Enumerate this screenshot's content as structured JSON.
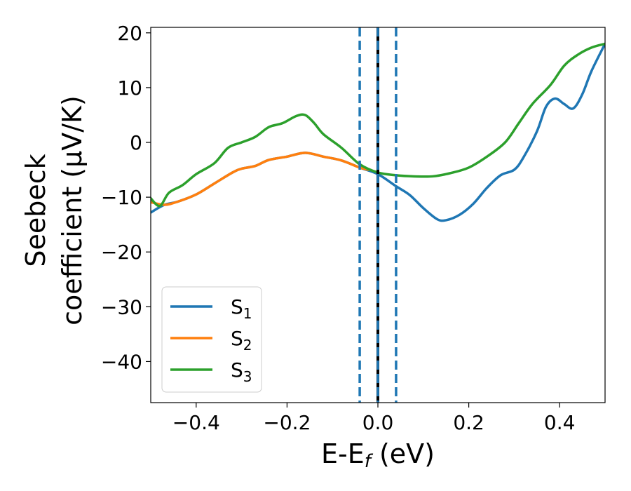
{
  "chart_data": {
    "type": "line",
    "xlabel": "E-E",
    "xlabel_sub": "f",
    "xlabel_unit": " (eV)",
    "ylabel_line1": "Seebeck",
    "ylabel_line2": "coefficient  (μV/K)",
    "xlim": [
      -0.5,
      0.5
    ],
    "ylim": [
      -47.5,
      21
    ],
    "xticks": [
      -0.4,
      -0.2,
      0.0,
      0.2,
      0.4
    ],
    "xtick_labels": [
      "−0.4",
      "−0.2",
      "0.0",
      "0.2",
      "0.4"
    ],
    "yticks": [
      20,
      10,
      0,
      -10,
      -20,
      -30,
      -40
    ],
    "ytick_labels": [
      "20",
      "10",
      "0",
      "−10",
      "−20",
      "−30",
      "−40"
    ],
    "vlines": [
      {
        "x": 0.0,
        "style": "solid",
        "color": "#000000"
      },
      {
        "x": -0.04,
        "style": "dashed",
        "color": "#1f77b4"
      },
      {
        "x": 0.0,
        "style": "dashed",
        "color": "#1f77b4"
      },
      {
        "x": 0.04,
        "style": "dashed",
        "color": "#1f77b4"
      }
    ],
    "legend_position": "lower-left",
    "series": [
      {
        "name": "S",
        "sub": "1",
        "color": "#1f77b4",
        "points": [
          [
            -0.5,
            -12.8
          ],
          [
            -0.47,
            -11.4
          ],
          [
            -0.44,
            -10.8
          ],
          [
            -0.4,
            -9.5
          ],
          [
            -0.36,
            -7.5
          ],
          [
            -0.32,
            -5.5
          ],
          [
            -0.3,
            -4.8
          ],
          [
            -0.27,
            -4.3
          ],
          [
            -0.24,
            -3.2
          ],
          [
            -0.2,
            -2.6
          ],
          [
            -0.16,
            -1.9
          ],
          [
            -0.12,
            -2.6
          ],
          [
            -0.08,
            -3.3
          ],
          [
            -0.04,
            -4.6
          ],
          [
            0.0,
            -5.8
          ],
          [
            0.04,
            -8.0
          ],
          [
            0.07,
            -9.6
          ],
          [
            0.1,
            -12.0
          ],
          [
            0.13,
            -14.0
          ],
          [
            0.15,
            -14.2
          ],
          [
            0.18,
            -13.2
          ],
          [
            0.21,
            -11.2
          ],
          [
            0.24,
            -8.3
          ],
          [
            0.27,
            -6.0
          ],
          [
            0.3,
            -5.0
          ],
          [
            0.32,
            -2.8
          ],
          [
            0.35,
            2.0
          ],
          [
            0.37,
            6.5
          ],
          [
            0.39,
            8.0
          ],
          [
            0.41,
            7.0
          ],
          [
            0.43,
            6.2
          ],
          [
            0.45,
            8.8
          ],
          [
            0.47,
            13.0
          ],
          [
            0.5,
            18.0
          ]
        ]
      },
      {
        "name": "S",
        "sub": "2",
        "color": "#ff7f0e",
        "points": [
          [
            -0.5,
            -10.9
          ],
          [
            -0.47,
            -11.4
          ],
          [
            -0.44,
            -10.8
          ],
          [
            -0.4,
            -9.5
          ],
          [
            -0.36,
            -7.5
          ],
          [
            -0.32,
            -5.5
          ],
          [
            -0.3,
            -4.8
          ],
          [
            -0.27,
            -4.3
          ],
          [
            -0.24,
            -3.2
          ],
          [
            -0.2,
            -2.6
          ],
          [
            -0.16,
            -1.9
          ],
          [
            -0.12,
            -2.6
          ],
          [
            -0.08,
            -3.3
          ],
          [
            -0.04,
            -4.6
          ],
          [
            -0.02,
            -5.0
          ]
        ]
      },
      {
        "name": "S",
        "sub": "3",
        "color": "#2ca02c",
        "points": [
          [
            -0.5,
            -10.2
          ],
          [
            -0.48,
            -11.6
          ],
          [
            -0.46,
            -9.2
          ],
          [
            -0.43,
            -7.8
          ],
          [
            -0.4,
            -5.8
          ],
          [
            -0.36,
            -3.8
          ],
          [
            -0.33,
            -1.0
          ],
          [
            -0.3,
            0.0
          ],
          [
            -0.27,
            1.0
          ],
          [
            -0.24,
            2.8
          ],
          [
            -0.21,
            3.5
          ],
          [
            -0.18,
            4.8
          ],
          [
            -0.16,
            5.0
          ],
          [
            -0.14,
            3.5
          ],
          [
            -0.12,
            1.5
          ],
          [
            -0.08,
            -1.0
          ],
          [
            -0.04,
            -4.0
          ],
          [
            0.0,
            -5.5
          ],
          [
            0.04,
            -6.0
          ],
          [
            0.08,
            -6.2
          ],
          [
            0.12,
            -6.2
          ],
          [
            0.16,
            -5.6
          ],
          [
            0.2,
            -4.6
          ],
          [
            0.24,
            -2.6
          ],
          [
            0.28,
            0.0
          ],
          [
            0.31,
            3.5
          ],
          [
            0.34,
            7.0
          ],
          [
            0.38,
            10.5
          ],
          [
            0.41,
            14.0
          ],
          [
            0.44,
            16.0
          ],
          [
            0.47,
            17.3
          ],
          [
            0.5,
            18.0
          ]
        ]
      }
    ]
  }
}
